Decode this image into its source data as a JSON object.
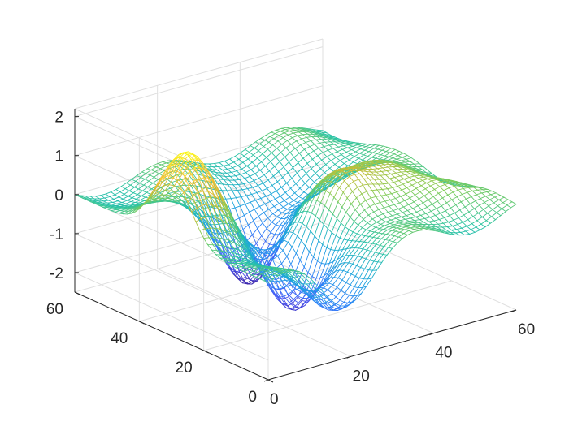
{
  "chart_data": {
    "type": "surface-mesh",
    "title": "",
    "xlabel": "",
    "ylabel": "",
    "zlabel": "",
    "xlim": [
      0,
      60
    ],
    "ylim": [
      0,
      60
    ],
    "zlim": [
      -2.5,
      2.2
    ],
    "x_ticks": [
      0,
      20,
      40,
      60
    ],
    "y_ticks": [
      0,
      20,
      40,
      60
    ],
    "z_ticks": [
      -2,
      -1,
      0,
      1,
      2
    ],
    "x_tick_labels": [
      "0",
      "20",
      "40",
      "60"
    ],
    "y_tick_labels": [
      "0",
      "20",
      "40",
      "60"
    ],
    "z_tick_labels": [
      "-2",
      "-1",
      "0",
      "1",
      "2"
    ],
    "grid": true,
    "grid_size": 49,
    "colormap": "parula",
    "colormap_stops": [
      "#3e26a8",
      "#4755f5",
      "#2d85f7",
      "#1da8d9",
      "#2ac3a4",
      "#81cc58",
      "#d9ba30",
      "#fcc93a",
      "#f9fb15"
    ],
    "surface": {
      "description_of_peaks": "wavy surface with a tall yellow peak near x=0..10, y=25..40; deep blue valleys near x=15..25, y=5..20 and x=20..35, y=30..45",
      "peaks": [
        {
          "x": 4,
          "y": 30,
          "z": 2.0
        },
        {
          "x": 22,
          "y": 20,
          "z": -2.4
        },
        {
          "x": 27,
          "y": 40,
          "z": -2.2
        },
        {
          "x": 35,
          "y": 22,
          "z": 1.2
        },
        {
          "x": 48,
          "y": 30,
          "z": 0.6
        },
        {
          "x": 18,
          "y": 4,
          "z": -1.2
        },
        {
          "x": 40,
          "y": 44,
          "z": -0.8
        },
        {
          "x": 55,
          "y": 12,
          "z": 0.4
        }
      ]
    }
  }
}
